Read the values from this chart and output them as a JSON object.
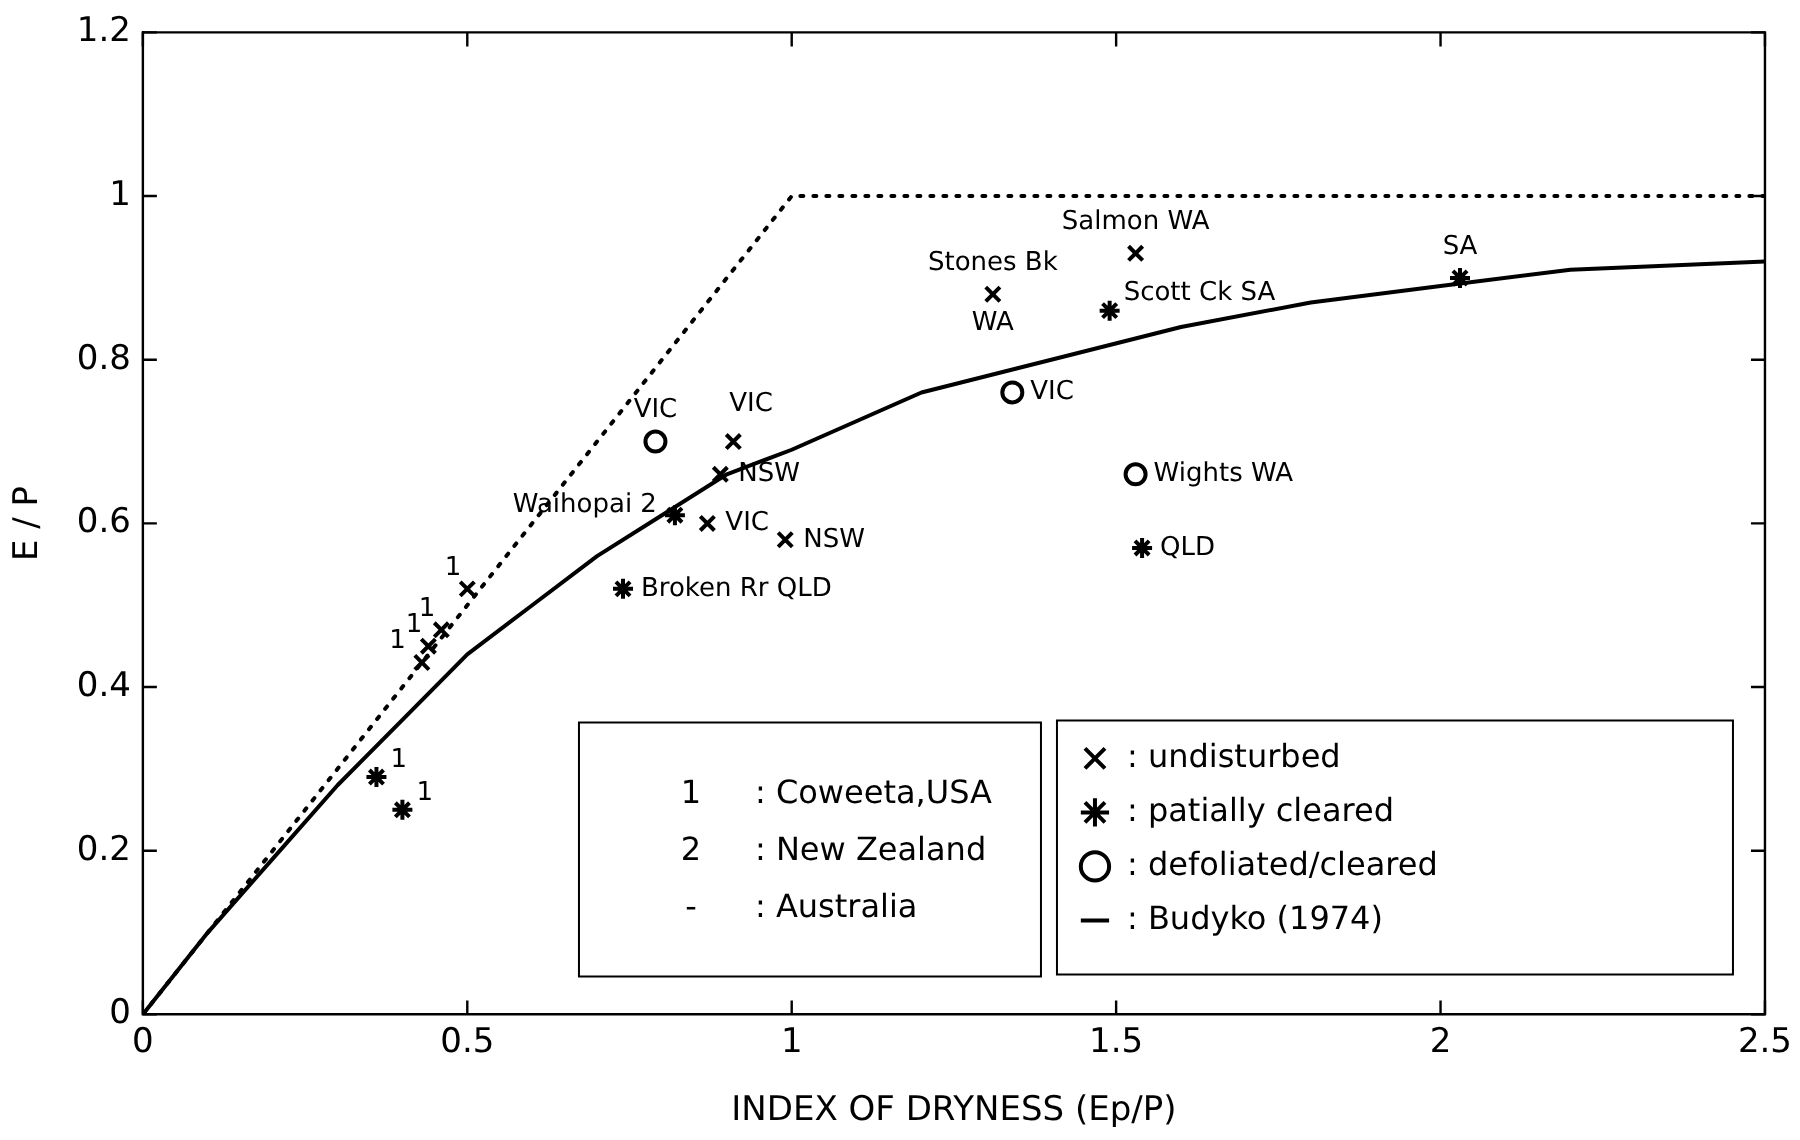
{
  "chart_data": {
    "type": "scatter",
    "xlabel": "INDEX OF DRYNESS (Ep/P)",
    "ylabel": "E / P",
    "xlim": [
      0,
      2.5
    ],
    "xticks": [
      0,
      0.5,
      1,
      1.5,
      2,
      2.5
    ],
    "ylim": [
      0,
      1.2
    ],
    "yticks": [
      0,
      0.2,
      0.4,
      0.6,
      0.8,
      1,
      1.2
    ],
    "grid": false,
    "legend": "bottom right",
    "annotations": [
      "1 : Coweeta,USA",
      "2 : New Zealand",
      "- : Australia",
      {
        "text": "Salmon WA",
        "x": 1.53,
        "y": 0.93
      },
      {
        "text": "Stones Bk",
        "x": 1.31,
        "y": 0.88
      },
      {
        "text": "WA",
        "x": 1.31,
        "y": 0.88
      },
      {
        "text": "VIC",
        "x": 0.91,
        "y": 0.7
      },
      {
        "text": "NSW",
        "x": 0.89,
        "y": 0.66
      },
      {
        "text": "VIC",
        "x": 0.87,
        "y": 0.6
      },
      {
        "text": "NSW",
        "x": 0.99,
        "y": 0.58
      },
      {
        "text": "1",
        "x": 0.5,
        "y": 0.52
      },
      {
        "text": "1",
        "x": 0.46,
        "y": 0.47
      },
      {
        "text": "1",
        "x": 0.44,
        "y": 0.45
      },
      {
        "text": "1",
        "x": 0.43,
        "y": 0.43
      },
      {
        "text": "Scott Ck SA",
        "x": 1.49,
        "y": 0.86
      },
      {
        "text": "SA",
        "x": 2.03,
        "y": 0.9
      },
      {
        "text": "QLD",
        "x": 1.54,
        "y": 0.57
      },
      {
        "text": "Waihopai 2",
        "x": 0.82,
        "y": 0.61
      },
      {
        "text": "Broken Rr QLD",
        "x": 0.74,
        "y": 0.52
      },
      {
        "text": "1",
        "x": 0.36,
        "y": 0.29
      },
      {
        "text": "1",
        "x": 0.4,
        "y": 0.25
      },
      {
        "text": "VIC",
        "x": 0.79,
        "y": 0.7
      },
      {
        "text": "VIC",
        "x": 1.34,
        "y": 0.76
      },
      {
        "text": "Wights WA",
        "x": 1.53,
        "y": 0.66
      }
    ],
    "series": [
      {
        "name": ": undisturbed",
        "type": "scatter",
        "marker": "cross",
        "color": "#000000",
        "x": [
          1.53,
          1.31,
          0.91,
          0.89,
          0.87,
          0.99,
          0.5,
          0.46,
          0.44,
          0.43
        ],
        "values": [
          0.93,
          0.88,
          0.7,
          0.66,
          0.6,
          0.58,
          0.52,
          0.47,
          0.45,
          0.43
        ]
      },
      {
        "name": ": patially cleared",
        "type": "scatter",
        "color": "#000000",
        "x": [
          1.49,
          2.03,
          1.54,
          0.82,
          0.74,
          0.36,
          0.4
        ],
        "values": [
          0.86,
          0.9,
          0.57,
          0.61,
          0.52,
          0.29,
          0.25
        ]
      },
      {
        "name": ": defoliated/cleared",
        "type": "scatter",
        "marker": "circle",
        "color": "#000000",
        "x": [
          0.79,
          1.34,
          1.53
        ],
        "values": [
          0.7,
          0.76,
          0.66
        ]
      },
      {
        "name": ": Budyko (1974)",
        "type": "line",
        "marker": "none",
        "line_style": "solid",
        "color": "#000000",
        "x": [
          0,
          0.1,
          0.2,
          0.3,
          0.4,
          0.5,
          0.6,
          0.7,
          0.8,
          0.9,
          1,
          1.2,
          1.4,
          1.6,
          1.8,
          2,
          2.2,
          2.5
        ],
        "values": [
          0,
          0.1,
          0.19,
          0.28,
          0.36,
          0.44,
          0.5,
          0.56,
          0.61,
          0.66,
          0.69,
          0.76,
          0.8,
          0.84,
          0.87,
          0.89,
          0.91,
          0.92
        ]
      },
      {
        "type": "line",
        "marker": "none",
        "line_style": "dotted",
        "color": "#000000",
        "x": [
          0,
          1,
          2.5
        ],
        "values": [
          0,
          1,
          1
        ]
      }
    ]
  }
}
